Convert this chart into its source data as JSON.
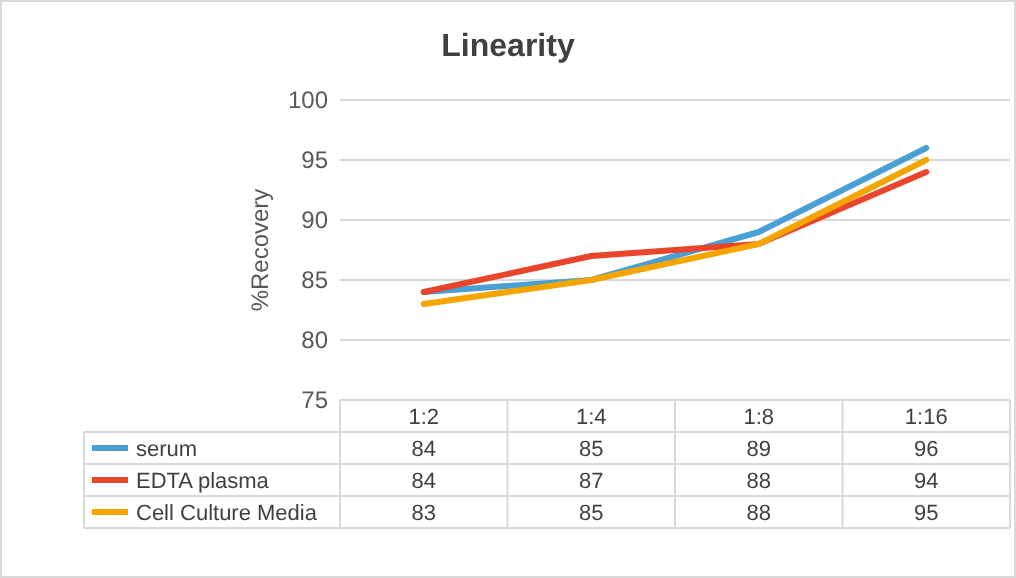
{
  "chart_data": {
    "type": "line",
    "title": "Linearity",
    "ylabel": "%Recovery",
    "categories": [
      "1:2",
      "1:4",
      "1:8",
      "1:16"
    ],
    "series": [
      {
        "name": "serum",
        "color": "#4a9fd4",
        "values": [
          84,
          85,
          89,
          96
        ]
      },
      {
        "name": "EDTA plasma",
        "color": "#e8452c",
        "values": [
          84,
          87,
          88,
          94
        ]
      },
      {
        "name": "Cell Culture Media",
        "color": "#f5a500",
        "values": [
          83,
          85,
          88,
          95
        ]
      }
    ],
    "ylim": [
      75,
      100
    ],
    "yticks": [
      75,
      80,
      85,
      90,
      95,
      100
    ],
    "grid": "y",
    "legend": "bottom",
    "data_labels": true
  }
}
